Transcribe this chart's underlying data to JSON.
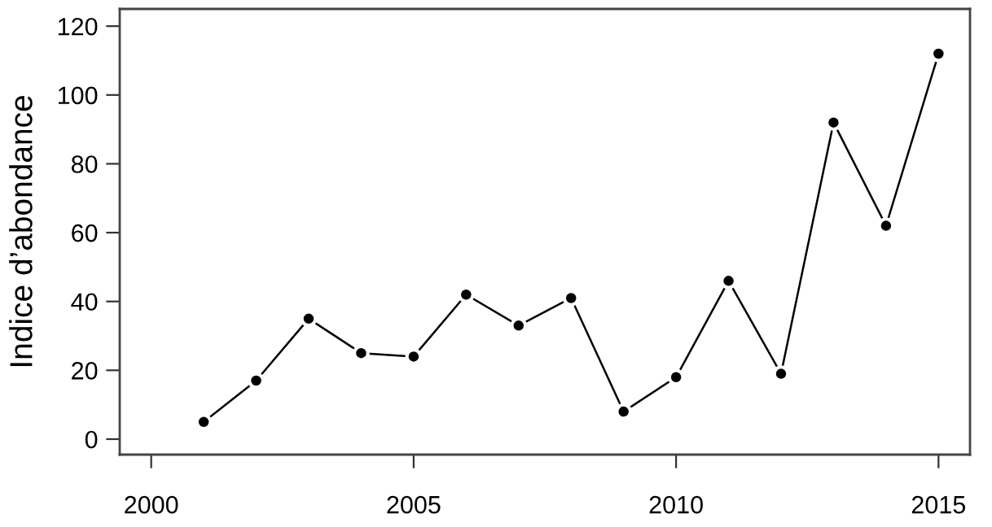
{
  "chart_data": {
    "type": "line",
    "ylabel": "Indice d’abondance",
    "x": [
      2001,
      2002,
      2003,
      2004,
      2005,
      2006,
      2007,
      2008,
      2009,
      2010,
      2011,
      2012,
      2013,
      2014,
      2015
    ],
    "series": [
      {
        "color": "#000000",
        "values": [
          5,
          17,
          35,
          25,
          24,
          42,
          33,
          41,
          8,
          18,
          46,
          19,
          92,
          62,
          112
        ]
      }
    ],
    "xlim": [
      1999.4,
      2015.6
    ],
    "xticks": [
      2000,
      2005,
      2010,
      2015
    ],
    "ylim": [
      -4.5,
      125
    ],
    "yticks": [
      0,
      20,
      40,
      60,
      80,
      100,
      120
    ],
    "grid": false,
    "legend": false,
    "marker": "circle",
    "line_style": "solid"
  }
}
